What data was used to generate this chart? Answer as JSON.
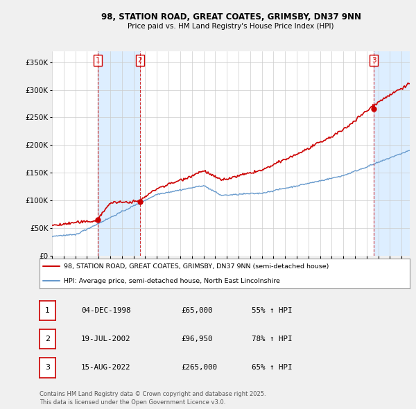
{
  "title1": "98, STATION ROAD, GREAT COATES, GRIMSBY, DN37 9NN",
  "title2": "Price paid vs. HM Land Registry's House Price Index (HPI)",
  "ylabel_ticks": [
    "£0",
    "£50K",
    "£100K",
    "£150K",
    "£200K",
    "£250K",
    "£300K",
    "£350K"
  ],
  "ytick_vals": [
    0,
    50000,
    100000,
    150000,
    200000,
    250000,
    300000,
    350000
  ],
  "ylim": [
    0,
    370000
  ],
  "xlim_start": 1995.0,
  "xlim_end": 2025.7,
  "background_color": "#f0f0f0",
  "plot_bg_color": "#ffffff",
  "red_color": "#cc0000",
  "blue_color": "#6699cc",
  "shade_color": "#ddeeff",
  "transaction_dates": [
    1998.92,
    2002.55,
    2022.62
  ],
  "transaction_prices": [
    65000,
    96950,
    265000
  ],
  "transaction_labels": [
    "1",
    "2",
    "3"
  ],
  "legend_label_red": "98, STATION ROAD, GREAT COATES, GRIMSBY, DN37 9NN (semi-detached house)",
  "legend_label_blue": "HPI: Average price, semi-detached house, North East Lincolnshire",
  "table_entries": [
    {
      "num": "1",
      "date": "04-DEC-1998",
      "price": "£65,000",
      "change": "55% ↑ HPI"
    },
    {
      "num": "2",
      "date": "19-JUL-2002",
      "price": "£96,950",
      "change": "78% ↑ HPI"
    },
    {
      "num": "3",
      "date": "15-AUG-2022",
      "price": "£265,000",
      "change": "65% ↑ HPI"
    }
  ],
  "footer": "Contains HM Land Registry data © Crown copyright and database right 2025.\nThis data is licensed under the Open Government Licence v3.0."
}
